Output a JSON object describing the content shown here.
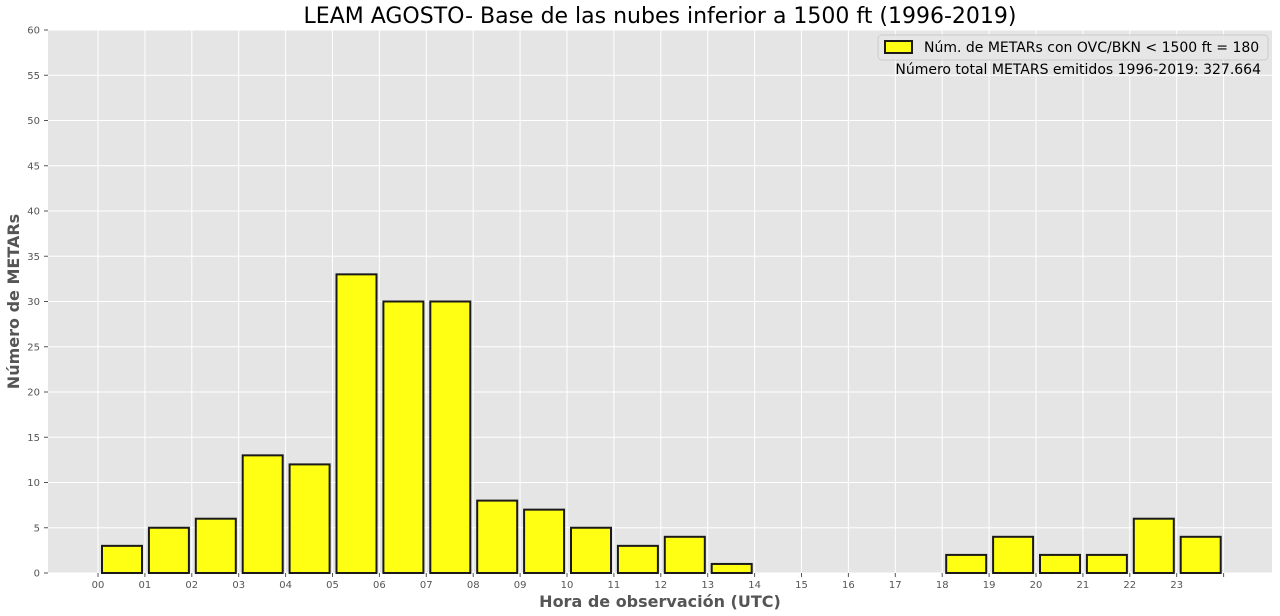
{
  "chart_data": {
    "type": "bar",
    "title": "LEAM AGOSTO- Base de las nubes inferior a 1500 ft (1996-2019)",
    "xlabel": "Hora de observación (UTC)",
    "ylabel": "Número de METARs",
    "categories": [
      "00",
      "01",
      "02",
      "03",
      "04",
      "05",
      "06",
      "07",
      "08",
      "09",
      "10",
      "11",
      "12",
      "13",
      "14",
      "15",
      "16",
      "17",
      "18",
      "19",
      "20",
      "21",
      "22",
      "23"
    ],
    "series": [
      {
        "name": "Núm. de METARs con OVC/BKN < 1500 ft = 180",
        "values": [
          3,
          5,
          6,
          13,
          12,
          33,
          30,
          30,
          8,
          7,
          5,
          3,
          4,
          1,
          0,
          0,
          0,
          0,
          2,
          4,
          2,
          2,
          6,
          4
        ]
      }
    ],
    "xtick_labels": [
      "00",
      "01",
      "02",
      "03",
      "04",
      "05",
      "06",
      "07",
      "08",
      "09",
      "10",
      "11",
      "12",
      "13",
      "14",
      "15",
      "16",
      "17",
      "18",
      "19",
      "20",
      "21",
      "22",
      "23",
      ""
    ],
    "ylim": [
      0,
      60
    ],
    "yticks": [
      0,
      5,
      10,
      15,
      20,
      25,
      30,
      35,
      40,
      45,
      50,
      55,
      60
    ],
    "grid": true,
    "style": "ggplot",
    "legend_position": "top-right",
    "annotation": "Número total METARS emitidos 1996-2019: 327.664",
    "colors": {
      "bar_fill": "#ffff14",
      "bar_edge": "#1a1a1a",
      "plot_background": "#e5e5e5",
      "grid": "#ffffff"
    }
  }
}
